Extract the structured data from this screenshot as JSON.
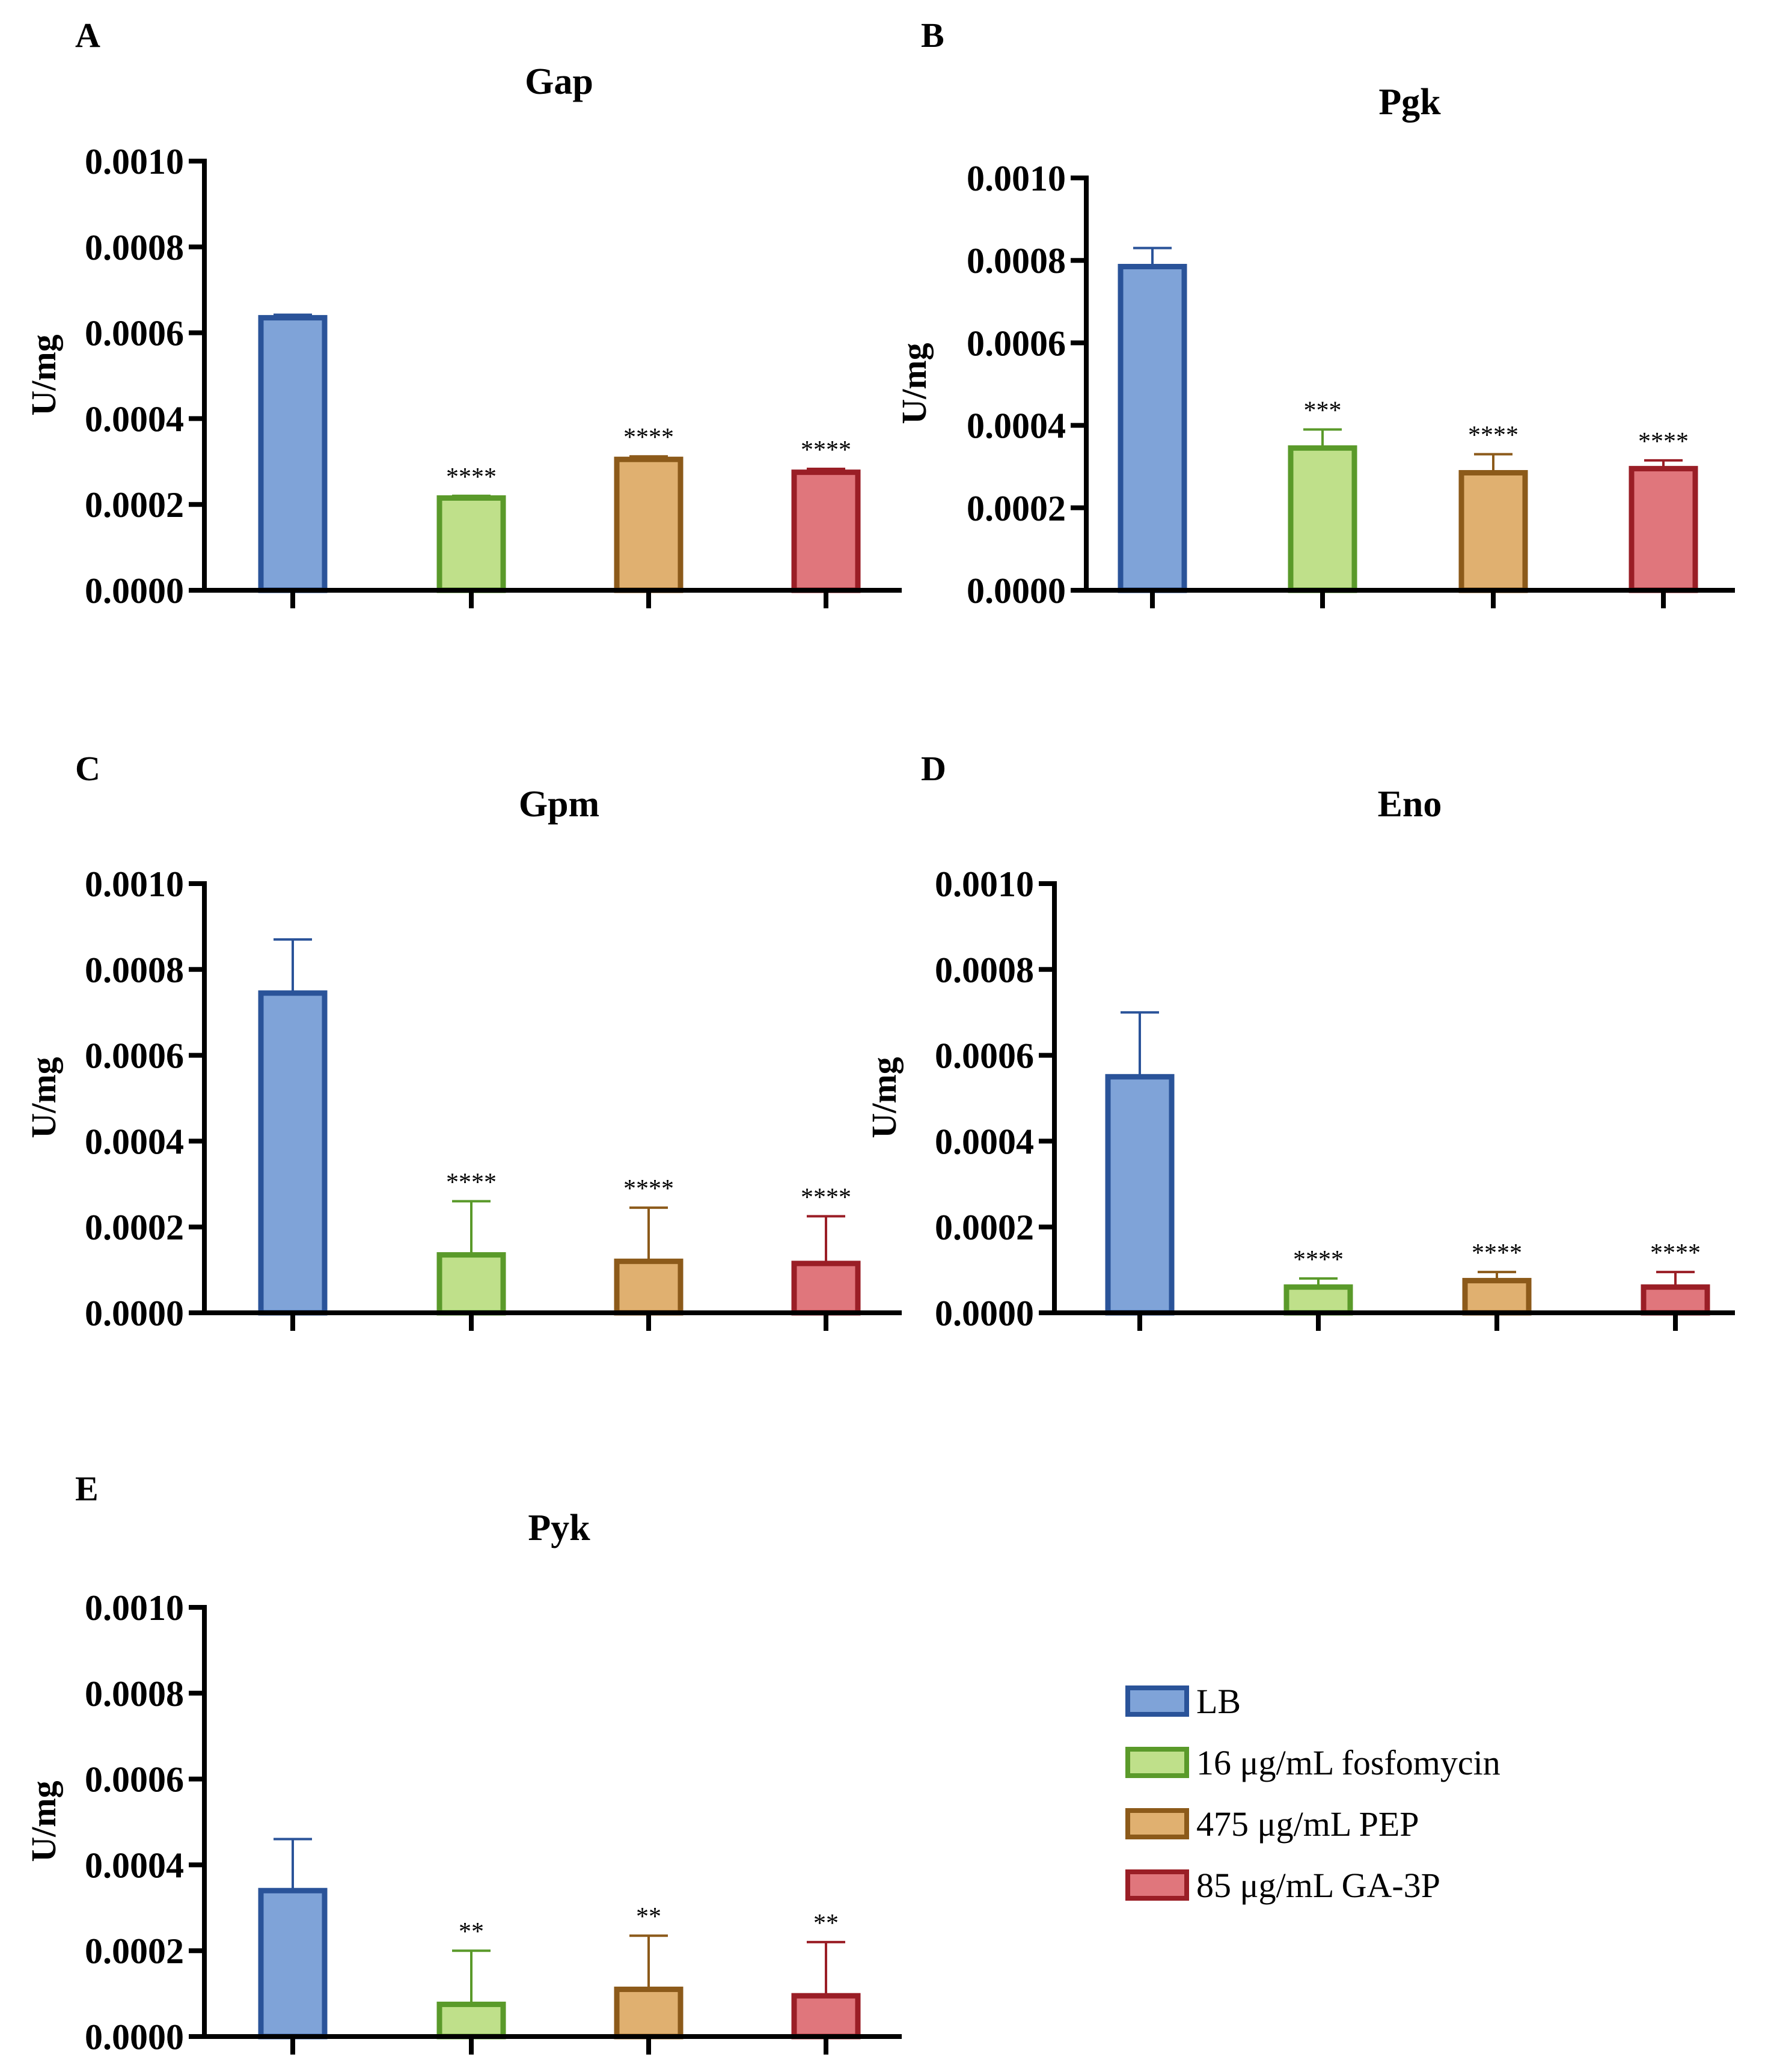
{
  "series": [
    {
      "name": "LB",
      "fill": "#7fa3d8",
      "stroke": "#2a5399"
    },
    {
      "name": "16 μg/mL fosfomycin",
      "fill": "#bfe08a",
      "stroke": "#5a9a2a"
    },
    {
      "name": "475 μg/mL PEP",
      "fill": "#e0b070",
      "stroke": "#8c5a1a"
    },
    {
      "name": "85 μg/mL GA-3P",
      "fill": "#e0767c",
      "stroke": "#9a1e26"
    }
  ],
  "chart_data": [
    {
      "type": "bar",
      "panel": "A",
      "title": "Gap",
      "ylabel": "U/mg",
      "ylim": [
        0,
        0.001
      ],
      "yticks": [
        "0.0000",
        "0.0002",
        "0.0004",
        "0.0006",
        "0.0008",
        "0.0010"
      ],
      "categories": [
        "LB",
        "16 μg/mL fosfomycin",
        "475 μg/mL PEP",
        "85 μg/mL GA-3P"
      ],
      "values": [
        0.000635,
        0.000215,
        0.000305,
        0.000275
      ],
      "errors": [
        7e-06,
        5e-06,
        7e-06,
        8e-06
      ],
      "significance": [
        "",
        "****",
        "****",
        "****"
      ]
    },
    {
      "type": "bar",
      "panel": "B",
      "title": "Pgk",
      "ylabel": "U/mg",
      "ylim": [
        0,
        0.001
      ],
      "yticks": [
        "0.0000",
        "0.0002",
        "0.0004",
        "0.0006",
        "0.0008",
        "0.0010"
      ],
      "categories": [
        "LB",
        "16 μg/mL fosfomycin",
        "475 μg/mL PEP",
        "85 μg/mL GA-3P"
      ],
      "values": [
        0.000785,
        0.000345,
        0.000285,
        0.000295
      ],
      "errors": [
        4.5e-05,
        4.5e-05,
        4.5e-05,
        2e-05
      ],
      "significance": [
        "",
        "***",
        "****",
        "****"
      ]
    },
    {
      "type": "bar",
      "panel": "C",
      "title": "Gpm",
      "ylabel": "U/mg",
      "ylim": [
        0,
        0.001
      ],
      "yticks": [
        "0.0000",
        "0.0002",
        "0.0004",
        "0.0006",
        "0.0008",
        "0.0010"
      ],
      "categories": [
        "LB",
        "16 μg/mL fosfomycin",
        "475 μg/mL PEP",
        "85 μg/mL GA-3P"
      ],
      "values": [
        0.000745,
        0.000135,
        0.00012,
        0.000115
      ],
      "errors": [
        0.000125,
        0.000125,
        0.000125,
        0.00011
      ],
      "significance": [
        "",
        "****",
        "****",
        "****"
      ]
    },
    {
      "type": "bar",
      "panel": "D",
      "title": "Eno",
      "ylabel": "U/mg",
      "ylim": [
        0,
        0.001
      ],
      "yticks": [
        "0.0000",
        "0.0002",
        "0.0004",
        "0.0006",
        "0.0008",
        "0.0010"
      ],
      "categories": [
        "LB",
        "16 μg/mL fosfomycin",
        "475 μg/mL PEP",
        "85 μg/mL GA-3P"
      ],
      "values": [
        0.00055,
        6e-05,
        7.5e-05,
        6e-05
      ],
      "errors": [
        0.00015,
        2e-05,
        2e-05,
        3.5e-05
      ],
      "significance": [
        "",
        "****",
        "****",
        "****"
      ]
    },
    {
      "type": "bar",
      "panel": "E",
      "title": "Pyk",
      "ylabel": "U/mg",
      "ylim": [
        0,
        0.001
      ],
      "yticks": [
        "0.0000",
        "0.0002",
        "0.0004",
        "0.0006",
        "0.0008",
        "0.0010"
      ],
      "categories": [
        "LB",
        "16 μg/mL fosfomycin",
        "475 μg/mL PEP",
        "85 μg/mL GA-3P"
      ],
      "values": [
        0.00034,
        7.5e-05,
        0.00011,
        9.5e-05
      ],
      "errors": [
        0.00012,
        0.000125,
        0.000125,
        0.000125
      ],
      "significance": [
        "",
        "**",
        "**",
        "**"
      ]
    }
  ]
}
